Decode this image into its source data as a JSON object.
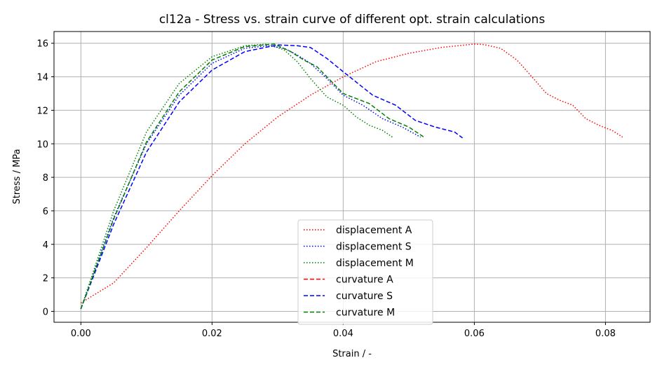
{
  "chart_data": {
    "type": "line",
    "title": "cl12a - Stress vs. strain curve of different opt. strain calculations",
    "xlabel": "Strain / -",
    "ylabel": "Stress / MPa",
    "xlim": [
      -0.0041,
      0.0868
    ],
    "ylim": [
      -0.65,
      16.7
    ],
    "xticks": [
      0.0,
      0.02,
      0.04,
      0.06,
      0.08
    ],
    "xtick_labels": [
      "0.00",
      "0.02",
      "0.04",
      "0.06",
      "0.08"
    ],
    "yticks": [
      0,
      2,
      4,
      6,
      8,
      10,
      12,
      14,
      16
    ],
    "ytick_labels": [
      "0",
      "2",
      "4",
      "6",
      "8",
      "10",
      "12",
      "14",
      "16"
    ],
    "grid": true,
    "legend_position": "lower center",
    "series": [
      {
        "name": "displacement A",
        "color": "#ff0000",
        "style": "dotted",
        "x": [
          0,
          0.005,
          0.01,
          0.015,
          0.02,
          0.025,
          0.03,
          0.035,
          0.04,
          0.045,
          0.05,
          0.055,
          0.06,
          0.0615,
          0.064,
          0.0665,
          0.069,
          0.071,
          0.073,
          0.075,
          0.077,
          0.079,
          0.081,
          0.0826
        ],
        "y": [
          0.5,
          1.7,
          3.8,
          6.0,
          8.1,
          10.0,
          11.6,
          12.9,
          14.0,
          14.9,
          15.4,
          15.75,
          15.95,
          15.92,
          15.7,
          15.0,
          13.9,
          13.0,
          12.6,
          12.3,
          11.5,
          11.1,
          10.8,
          10.4
        ]
      },
      {
        "name": "displacement S",
        "color": "#0000ff",
        "style": "dotted",
        "x": [
          0,
          0.005,
          0.01,
          0.015,
          0.02,
          0.025,
          0.0285,
          0.031,
          0.033,
          0.035,
          0.0375,
          0.04,
          0.043,
          0.046,
          0.049,
          0.0518
        ],
        "y": [
          0.15,
          5.6,
          10.0,
          12.9,
          14.8,
          15.7,
          15.85,
          15.7,
          15.3,
          14.8,
          13.9,
          12.9,
          12.3,
          11.5,
          11.0,
          10.4
        ]
      },
      {
        "name": "displacement M",
        "color": "#008000",
        "style": "dotted",
        "x": [
          0,
          0.005,
          0.01,
          0.015,
          0.02,
          0.025,
          0.0285,
          0.031,
          0.033,
          0.035,
          0.0375,
          0.04,
          0.042,
          0.044,
          0.046,
          0.0475
        ],
        "y": [
          0.15,
          6.0,
          10.7,
          13.6,
          15.2,
          15.85,
          15.95,
          15.6,
          14.9,
          13.9,
          12.8,
          12.3,
          11.6,
          11.1,
          10.8,
          10.4
        ]
      },
      {
        "name": "curvature A",
        "color": "#ff0000",
        "style": "dashed",
        "x": [],
        "y": []
      },
      {
        "name": "curvature S",
        "color": "#0000ff",
        "style": "dashed",
        "x": [
          0,
          0.005,
          0.01,
          0.015,
          0.02,
          0.025,
          0.03,
          0.033,
          0.035,
          0.0375,
          0.04,
          0.0445,
          0.048,
          0.051,
          0.054,
          0.057,
          0.0582
        ],
        "y": [
          0.15,
          5.2,
          9.5,
          12.5,
          14.4,
          15.5,
          15.9,
          15.85,
          15.75,
          15.1,
          14.3,
          12.9,
          12.3,
          11.4,
          11.0,
          10.7,
          10.35
        ]
      },
      {
        "name": "curvature M",
        "color": "#008000",
        "style": "dashed",
        "x": [
          0,
          0.005,
          0.01,
          0.015,
          0.02,
          0.025,
          0.0295,
          0.032,
          0.034,
          0.036,
          0.038,
          0.04,
          0.042,
          0.044,
          0.047,
          0.05,
          0.0525
        ],
        "y": [
          0.15,
          5.5,
          10.1,
          13.1,
          15.0,
          15.8,
          15.95,
          15.5,
          15.0,
          14.6,
          13.8,
          13.0,
          12.7,
          12.4,
          11.5,
          11.0,
          10.35
        ]
      }
    ]
  }
}
